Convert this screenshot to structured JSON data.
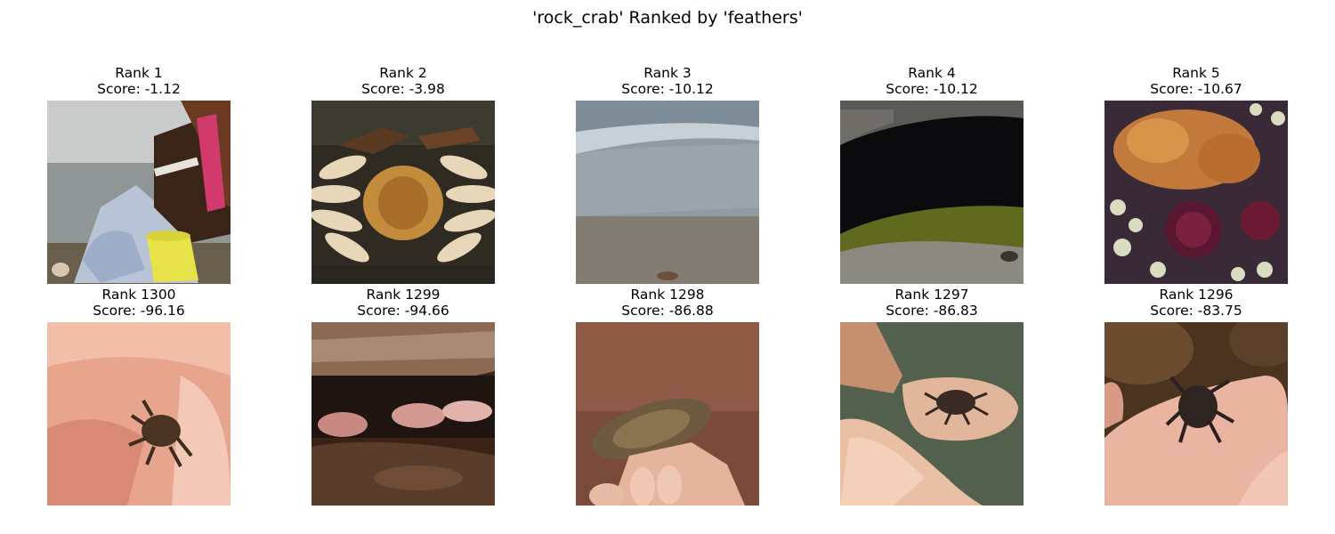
{
  "figure": {
    "title": "'rock_crab' Ranked by 'feathers'"
  },
  "top_row": [
    {
      "rank": "Rank 1",
      "score": "Score: -1.12",
      "scene": "child-with-yellow-bucket-on-shore"
    },
    {
      "rank": "Rank 2",
      "score": "Score: -3.98",
      "scene": "crab-underside-closeup"
    },
    {
      "rank": "Rank 3",
      "score": "Score: -10.12",
      "scene": "small-crab-on-wet-sand"
    },
    {
      "rank": "Rank 4",
      "score": "Score: -10.12",
      "scene": "crab-in-dark-cave-pool"
    },
    {
      "rank": "Rank 5",
      "score": "Score: -10.67",
      "scene": "crab-among-sea-urchins"
    }
  ],
  "bottom_row": [
    {
      "rank": "Rank 1300",
      "score": "Score: -96.16",
      "scene": "tiny-crab-in-palm"
    },
    {
      "rank": "Rank 1299",
      "score": "Score: -94.66",
      "scene": "crabs-under-rock-ledge"
    },
    {
      "rank": "Rank 1298",
      "score": "Score: -86.88",
      "scene": "hand-holding-green-crab"
    },
    {
      "rank": "Rank 1297",
      "score": "Score: -86.83",
      "scene": "crab-on-open-hand"
    },
    {
      "rank": "Rank 1296",
      "score": "Score: -83.75",
      "scene": "dark-crab-on-palm"
    }
  ]
}
